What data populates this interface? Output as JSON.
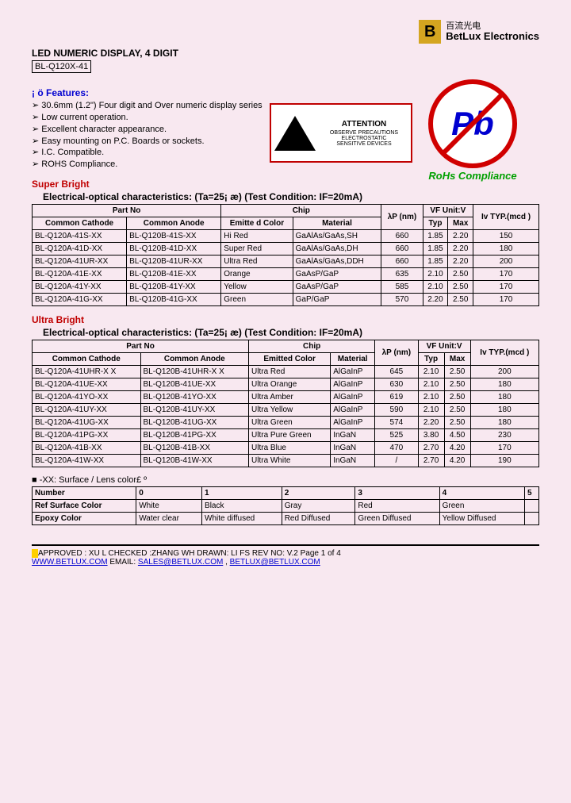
{
  "logo": {
    "cn": "百流光电",
    "brand": "BetLux",
    "suffix": " Electronics"
  },
  "header": {
    "title": "LED NUMERIC DISPLAY, 4 DIGIT",
    "part": "BL-Q120X-41"
  },
  "features": {
    "label": "¡ ö  Features:",
    "items": [
      "30.6mm (1.2\") Four digit and Over numeric display series",
      "Low current operation.",
      "Excellent character appearance.",
      "Easy mounting on P.C. Boards or sockets.",
      "I.C. Compatible.",
      "ROHS Compliance."
    ]
  },
  "esd": {
    "attention": "ATTENTION",
    "line1": "OBSERVE PRECAUTIONS",
    "line2": "ELECTROSTATIC",
    "line3": "SENSITIVE DEVICES"
  },
  "pb": {
    "symbol": "Pb",
    "label": "RoHs Compliance"
  },
  "table_headers": {
    "partno": "Part No",
    "cathode": "Common Cathode",
    "anode": "Common Anode",
    "chip": "Chip",
    "emitted": "Emitte d Color",
    "emitted2": "Emitted Color",
    "material": "Material",
    "lambda": "λP (nm)",
    "vf": "VF Unit:V",
    "typ": "Typ",
    "max": "Max",
    "iv": "Iv TYP.(mcd )"
  },
  "super_bright": {
    "title": "Super Bright",
    "caption": "Electrical-optical characteristics: (Ta=25¡ æ)  (Test Condition: IF=20mA)",
    "rows": [
      {
        "c": "BL-Q120A-41S-XX",
        "a": "BL-Q120B-41S-XX",
        "col": "Hi Red",
        "mat": "GaAlAs/GaAs,SH",
        "nm": "660",
        "typ": "1.85",
        "max": "2.20",
        "iv": "150"
      },
      {
        "c": "BL-Q120A-41D-XX",
        "a": "BL-Q120B-41D-XX",
        "col": "Super Red",
        "mat": "GaAlAs/GaAs,DH",
        "nm": "660",
        "typ": "1.85",
        "max": "2.20",
        "iv": "180"
      },
      {
        "c": "BL-Q120A-41UR-XX",
        "a": "BL-Q120B-41UR-XX",
        "col": "Ultra Red",
        "mat": "GaAlAs/GaAs,DDH",
        "nm": "660",
        "typ": "1.85",
        "max": "2.20",
        "iv": "200"
      },
      {
        "c": "BL-Q120A-41E-XX",
        "a": "BL-Q120B-41E-XX",
        "col": "Orange",
        "mat": "GaAsP/GaP",
        "nm": "635",
        "typ": "2.10",
        "max": "2.50",
        "iv": "170"
      },
      {
        "c": "BL-Q120A-41Y-XX",
        "a": "BL-Q120B-41Y-XX",
        "col": "Yellow",
        "mat": "GaAsP/GaP",
        "nm": "585",
        "typ": "2.10",
        "max": "2.50",
        "iv": "170"
      },
      {
        "c": "BL-Q120A-41G-XX",
        "a": "BL-Q120B-41G-XX",
        "col": "Green",
        "mat": "GaP/GaP",
        "nm": "570",
        "typ": "2.20",
        "max": "2.50",
        "iv": "170"
      }
    ]
  },
  "ultra_bright": {
    "title": "Ultra Bright",
    "caption": "Electrical-optical characteristics: (Ta=25¡ æ)  (Test Condition: IF=20mA)",
    "rows": [
      {
        "c": "BL-Q120A-41UHR-X X",
        "a": "BL-Q120B-41UHR-X X",
        "col": "Ultra Red",
        "mat": "AlGaInP",
        "nm": "645",
        "typ": "2.10",
        "max": "2.50",
        "iv": "200"
      },
      {
        "c": "BL-Q120A-41UE-XX",
        "a": "BL-Q120B-41UE-XX",
        "col": "Ultra Orange",
        "mat": "AlGaInP",
        "nm": "630",
        "typ": "2.10",
        "max": "2.50",
        "iv": "180"
      },
      {
        "c": "BL-Q120A-41YO-XX",
        "a": "BL-Q120B-41YO-XX",
        "col": "Ultra Amber",
        "mat": "AlGaInP",
        "nm": "619",
        "typ": "2.10",
        "max": "2.50",
        "iv": "180"
      },
      {
        "c": "BL-Q120A-41UY-XX",
        "a": "BL-Q120B-41UY-XX",
        "col": "Ultra Yellow",
        "mat": "AlGaInP",
        "nm": "590",
        "typ": "2.10",
        "max": "2.50",
        "iv": "180"
      },
      {
        "c": "BL-Q120A-41UG-XX",
        "a": "BL-Q120B-41UG-XX",
        "col": "Ultra Green",
        "mat": "AlGaInP",
        "nm": "574",
        "typ": "2.20",
        "max": "2.50",
        "iv": "180"
      },
      {
        "c": "BL-Q120A-41PG-XX",
        "a": "BL-Q120B-41PG-XX",
        "col": "Ultra Pure Green",
        "mat": "InGaN",
        "nm": "525",
        "typ": "3.80",
        "max": "4.50",
        "iv": "230"
      },
      {
        "c": "BL-Q120A-41B-XX",
        "a": "BL-Q120B-41B-XX",
        "col": "Ultra Blue",
        "mat": "InGaN",
        "nm": "470",
        "typ": "2.70",
        "max": "4.20",
        "iv": "170"
      },
      {
        "c": "BL-Q120A-41W-XX",
        "a": "BL-Q120B-41W-XX",
        "col": "Ultra White",
        "mat": "InGaN",
        "nm": "/",
        "typ": "2.70",
        "max": "4.20",
        "iv": "190"
      }
    ]
  },
  "note": "-XX: Surface / Lens color£ º",
  "color_table": {
    "headers": [
      "Number",
      "0",
      "1",
      "2",
      "3",
      "4",
      "5"
    ],
    "rows": [
      [
        "Ref Surface Color",
        "White",
        "Black",
        "Gray",
        "Red",
        "Green",
        ""
      ],
      [
        "Epoxy Color",
        "Water clear",
        "White diffused",
        "Red Diffused",
        "Green Diffused",
        "Yellow Diffused",
        ""
      ]
    ]
  },
  "footer": {
    "line1a": "APPROVED : XU L    CHECKED :ZHANG WH    DRAWN:  LI FS       REV NO: V.2     Page 1 of 4",
    "url": "WWW.BETLUX.COM",
    "email_label": "    EMAIL: ",
    "email1": "SALES@BETLUX.COM",
    "sep": " , ",
    "email2": "BETLUX@BETLUX.COM"
  }
}
